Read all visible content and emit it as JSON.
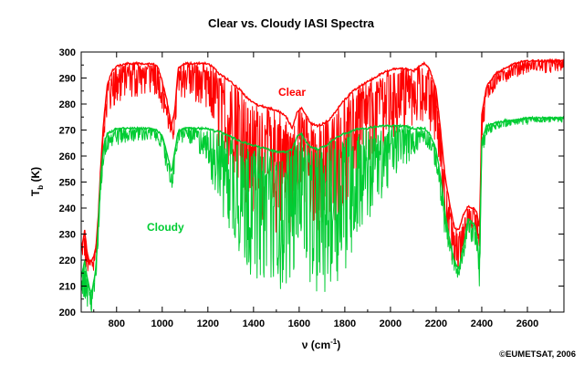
{
  "chart_data": {
    "type": "line",
    "title": "Clear vs. Cloudy IASI Spectra",
    "xlabel": {
      "symbol": "ν",
      "open": " (cm",
      "exp": "-1",
      "close": ")"
    },
    "ylabel": {
      "main": "T",
      "sub": "b",
      "unit": " (K)"
    },
    "xlim": [
      645,
      2760
    ],
    "ylim": [
      200,
      300
    ],
    "xticks": [
      800,
      1000,
      1200,
      1400,
      1600,
      1800,
      2000,
      2200,
      2400,
      2600
    ],
    "yticks": [
      200,
      210,
      220,
      230,
      240,
      250,
      260,
      270,
      280,
      290,
      300
    ],
    "grid": false,
    "series": [
      {
        "name": "Clear",
        "color": "#ff0000",
        "upper": [
          [
            645,
            224
          ],
          [
            660,
            232
          ],
          [
            670,
            224
          ],
          [
            680,
            220
          ],
          [
            690,
            220
          ],
          [
            700,
            222
          ],
          [
            710,
            226
          ],
          [
            720,
            238
          ],
          [
            730,
            256
          ],
          [
            740,
            270
          ],
          [
            750,
            280
          ],
          [
            760,
            288
          ],
          [
            780,
            293
          ],
          [
            800,
            295
          ],
          [
            850,
            296
          ],
          [
            900,
            296
          ],
          [
            950,
            296
          ],
          [
            980,
            295
          ],
          [
            1000,
            289
          ],
          [
            1020,
            282
          ],
          [
            1040,
            272
          ],
          [
            1055,
            278
          ],
          [
            1070,
            294
          ],
          [
            1100,
            296
          ],
          [
            1150,
            296
          ],
          [
            1200,
            296
          ],
          [
            1230,
            294
          ],
          [
            1250,
            292
          ],
          [
            1270,
            291
          ],
          [
            1300,
            289
          ],
          [
            1340,
            286
          ],
          [
            1380,
            282
          ],
          [
            1420,
            280
          ],
          [
            1460,
            279
          ],
          [
            1500,
            278
          ],
          [
            1540,
            276
          ],
          [
            1570,
            271
          ],
          [
            1590,
            277
          ],
          [
            1610,
            279
          ],
          [
            1630,
            276
          ],
          [
            1650,
            273
          ],
          [
            1680,
            272
          ],
          [
            1710,
            273
          ],
          [
            1740,
            275
          ],
          [
            1770,
            279
          ],
          [
            1800,
            282
          ],
          [
            1830,
            285
          ],
          [
            1860,
            287
          ],
          [
            1900,
            289
          ],
          [
            1940,
            291
          ],
          [
            1980,
            293
          ],
          [
            2020,
            294
          ],
          [
            2060,
            294
          ],
          [
            2100,
            293
          ],
          [
            2130,
            295
          ],
          [
            2150,
            296
          ],
          [
            2170,
            294
          ],
          [
            2200,
            286
          ],
          [
            2220,
            270
          ],
          [
            2240,
            252
          ],
          [
            2260,
            242
          ],
          [
            2280,
            233
          ],
          [
            2300,
            232
          ],
          [
            2320,
            238
          ],
          [
            2340,
            241
          ],
          [
            2370,
            240
          ],
          [
            2380,
            238
          ],
          [
            2390,
            232
          ],
          [
            2400,
            276
          ],
          [
            2420,
            287
          ],
          [
            2460,
            292
          ],
          [
            2500,
            294
          ],
          [
            2540,
            296
          ],
          [
            2600,
            297
          ],
          [
            2650,
            297
          ],
          [
            2700,
            297
          ],
          [
            2760,
            297
          ]
        ],
        "lower": [
          [
            645,
            221
          ],
          [
            660,
            218
          ],
          [
            670,
            215
          ],
          [
            680,
            215
          ],
          [
            690,
            214
          ],
          [
            700,
            216
          ],
          [
            710,
            220
          ],
          [
            720,
            230
          ],
          [
            730,
            248
          ],
          [
            740,
            262
          ],
          [
            750,
            270
          ],
          [
            760,
            274
          ],
          [
            780,
            278
          ],
          [
            800,
            280
          ],
          [
            850,
            282
          ],
          [
            900,
            283
          ],
          [
            950,
            284
          ],
          [
            980,
            283
          ],
          [
            1000,
            278
          ],
          [
            1020,
            272
          ],
          [
            1040,
            262
          ],
          [
            1055,
            270
          ],
          [
            1070,
            280
          ],
          [
            1100,
            282
          ],
          [
            1150,
            280
          ],
          [
            1200,
            276
          ],
          [
            1230,
            268
          ],
          [
            1250,
            262
          ],
          [
            1270,
            258
          ],
          [
            1300,
            252
          ],
          [
            1340,
            246
          ],
          [
            1380,
            240
          ],
          [
            1420,
            236
          ],
          [
            1460,
            233
          ],
          [
            1500,
            230
          ],
          [
            1540,
            228
          ],
          [
            1570,
            232
          ],
          [
            1590,
            245
          ],
          [
            1610,
            248
          ],
          [
            1630,
            238
          ],
          [
            1650,
            232
          ],
          [
            1680,
            230
          ],
          [
            1710,
            231
          ],
          [
            1740,
            233
          ],
          [
            1770,
            236
          ],
          [
            1800,
            240
          ],
          [
            1830,
            245
          ],
          [
            1860,
            250
          ],
          [
            1900,
            255
          ],
          [
            1940,
            260
          ],
          [
            1980,
            264
          ],
          [
            2020,
            268
          ],
          [
            2060,
            270
          ],
          [
            2100,
            271
          ],
          [
            2130,
            273
          ],
          [
            2150,
            274
          ],
          [
            2170,
            270
          ],
          [
            2200,
            262
          ],
          [
            2220,
            248
          ],
          [
            2240,
            233
          ],
          [
            2260,
            222
          ],
          [
            2280,
            216
          ],
          [
            2300,
            215
          ],
          [
            2320,
            222
          ],
          [
            2340,
            230
          ],
          [
            2370,
            232
          ],
          [
            2380,
            228
          ],
          [
            2390,
            222
          ],
          [
            2400,
            265
          ],
          [
            2420,
            280
          ],
          [
            2460,
            286
          ],
          [
            2500,
            288
          ],
          [
            2540,
            290
          ],
          [
            2600,
            292
          ],
          [
            2650,
            292
          ],
          [
            2700,
            292
          ],
          [
            2760,
            293
          ]
        ]
      },
      {
        "name": "Cloudy",
        "color": "#00cc33",
        "upper": [
          [
            645,
            214
          ],
          [
            660,
            220
          ],
          [
            670,
            214
          ],
          [
            680,
            210
          ],
          [
            690,
            208
          ],
          [
            700,
            212
          ],
          [
            710,
            218
          ],
          [
            720,
            235
          ],
          [
            730,
            252
          ],
          [
            740,
            262
          ],
          [
            750,
            267
          ],
          [
            760,
            269
          ],
          [
            780,
            270
          ],
          [
            800,
            271
          ],
          [
            850,
            271
          ],
          [
            900,
            271
          ],
          [
            950,
            271
          ],
          [
            980,
            270
          ],
          [
            1000,
            268
          ],
          [
            1020,
            262
          ],
          [
            1040,
            254
          ],
          [
            1055,
            262
          ],
          [
            1070,
            270
          ],
          [
            1100,
            271
          ],
          [
            1150,
            271
          ],
          [
            1200,
            271
          ],
          [
            1230,
            270
          ],
          [
            1250,
            270
          ],
          [
            1270,
            269
          ],
          [
            1300,
            268
          ],
          [
            1340,
            266
          ],
          [
            1380,
            265
          ],
          [
            1420,
            264
          ],
          [
            1460,
            263
          ],
          [
            1500,
            262
          ],
          [
            1540,
            262
          ],
          [
            1570,
            263
          ],
          [
            1590,
            268
          ],
          [
            1610,
            269
          ],
          [
            1630,
            266
          ],
          [
            1650,
            264
          ],
          [
            1680,
            263
          ],
          [
            1710,
            264
          ],
          [
            1740,
            266
          ],
          [
            1770,
            268
          ],
          [
            1800,
            269
          ],
          [
            1830,
            270
          ],
          [
            1860,
            271
          ],
          [
            1900,
            271
          ],
          [
            1940,
            272
          ],
          [
            1980,
            272
          ],
          [
            2020,
            272
          ],
          [
            2060,
            272
          ],
          [
            2100,
            271
          ],
          [
            2130,
            271
          ],
          [
            2150,
            271
          ],
          [
            2170,
            269
          ],
          [
            2200,
            263
          ],
          [
            2220,
            252
          ],
          [
            2240,
            238
          ],
          [
            2260,
            228
          ],
          [
            2280,
            220
          ],
          [
            2300,
            217
          ],
          [
            2320,
            226
          ],
          [
            2340,
            236
          ],
          [
            2370,
            234
          ],
          [
            2380,
            228
          ],
          [
            2390,
            218
          ],
          [
            2400,
            266
          ],
          [
            2420,
            272
          ],
          [
            2460,
            273
          ],
          [
            2500,
            274
          ],
          [
            2540,
            274
          ],
          [
            2600,
            275
          ],
          [
            2650,
            275
          ],
          [
            2700,
            275
          ],
          [
            2760,
            275
          ]
        ],
        "lower": [
          [
            645,
            208
          ],
          [
            660,
            205
          ],
          [
            670,
            202
          ],
          [
            680,
            200
          ],
          [
            690,
            200
          ],
          [
            700,
            204
          ],
          [
            710,
            212
          ],
          [
            720,
            226
          ],
          [
            730,
            244
          ],
          [
            740,
            254
          ],
          [
            750,
            260
          ],
          [
            760,
            262
          ],
          [
            780,
            263
          ],
          [
            800,
            264
          ],
          [
            850,
            265
          ],
          [
            900,
            266
          ],
          [
            950,
            266
          ],
          [
            980,
            265
          ],
          [
            1000,
            262
          ],
          [
            1020,
            254
          ],
          [
            1040,
            246
          ],
          [
            1055,
            254
          ],
          [
            1070,
            264
          ],
          [
            1100,
            266
          ],
          [
            1150,
            262
          ],
          [
            1200,
            255
          ],
          [
            1230,
            246
          ],
          [
            1250,
            240
          ],
          [
            1270,
            234
          ],
          [
            1300,
            226
          ],
          [
            1340,
            220
          ],
          [
            1380,
            215
          ],
          [
            1420,
            212
          ],
          [
            1460,
            210
          ],
          [
            1500,
            208
          ],
          [
            1540,
            207
          ],
          [
            1570,
            212
          ],
          [
            1590,
            225
          ],
          [
            1610,
            230
          ],
          [
            1630,
            218
          ],
          [
            1650,
            208
          ],
          [
            1680,
            205
          ],
          [
            1710,
            206
          ],
          [
            1740,
            208
          ],
          [
            1770,
            212
          ],
          [
            1800,
            216
          ],
          [
            1830,
            222
          ],
          [
            1860,
            228
          ],
          [
            1900,
            234
          ],
          [
            1940,
            240
          ],
          [
            1980,
            246
          ],
          [
            2020,
            252
          ],
          [
            2060,
            256
          ],
          [
            2100,
            260
          ],
          [
            2130,
            263
          ],
          [
            2150,
            264
          ],
          [
            2170,
            262
          ],
          [
            2200,
            254
          ],
          [
            2220,
            242
          ],
          [
            2240,
            228
          ],
          [
            2260,
            219
          ],
          [
            2280,
            214
          ],
          [
            2300,
            213
          ],
          [
            2320,
            220
          ],
          [
            2340,
            228
          ],
          [
            2370,
            226
          ],
          [
            2380,
            218
          ],
          [
            2390,
            206
          ],
          [
            2400,
            258
          ],
          [
            2420,
            268
          ],
          [
            2460,
            270
          ],
          [
            2500,
            271
          ],
          [
            2540,
            272
          ],
          [
            2600,
            272
          ],
          [
            2650,
            273
          ],
          [
            2700,
            273
          ],
          [
            2760,
            273
          ]
        ]
      }
    ],
    "annotations": {
      "clear_label": "Clear",
      "cloudy_label": "Cloudy",
      "copyright": "©EUMETSAT, 2006"
    }
  }
}
